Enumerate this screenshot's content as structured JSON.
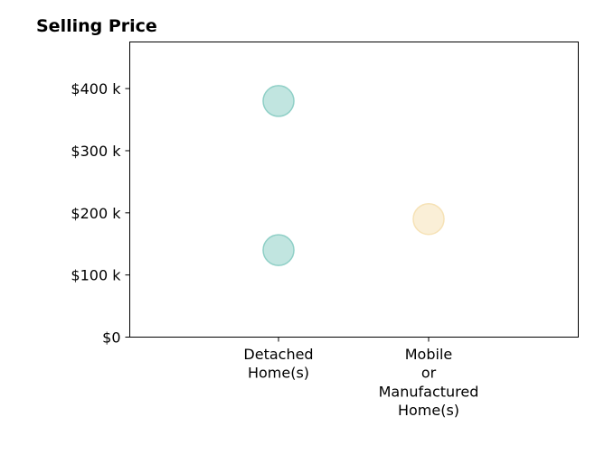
{
  "chart_data": {
    "type": "scatter",
    "title": "Selling Price",
    "xlabel": "",
    "ylabel": "",
    "categories": [
      [
        "Detached",
        "Home(s)"
      ],
      [
        "Mobile",
        "or",
        "Manufactured",
        "Home(s)"
      ]
    ],
    "ylim": [
      0,
      475
    ],
    "y_ticks": [
      0,
      100,
      200,
      300,
      400
    ],
    "y_tick_labels": [
      "$0",
      "$100 k",
      "$200 k",
      "$300 k",
      "$400 k"
    ],
    "grid": false,
    "legend": "none",
    "points": [
      {
        "category_index": 0,
        "y": 380,
        "color": "#8ecfc6"
      },
      {
        "category_index": 0,
        "y": 140,
        "color": "#8ecfc6"
      },
      {
        "category_index": 1,
        "y": 190,
        "color": "#f6e2b6"
      }
    ]
  }
}
